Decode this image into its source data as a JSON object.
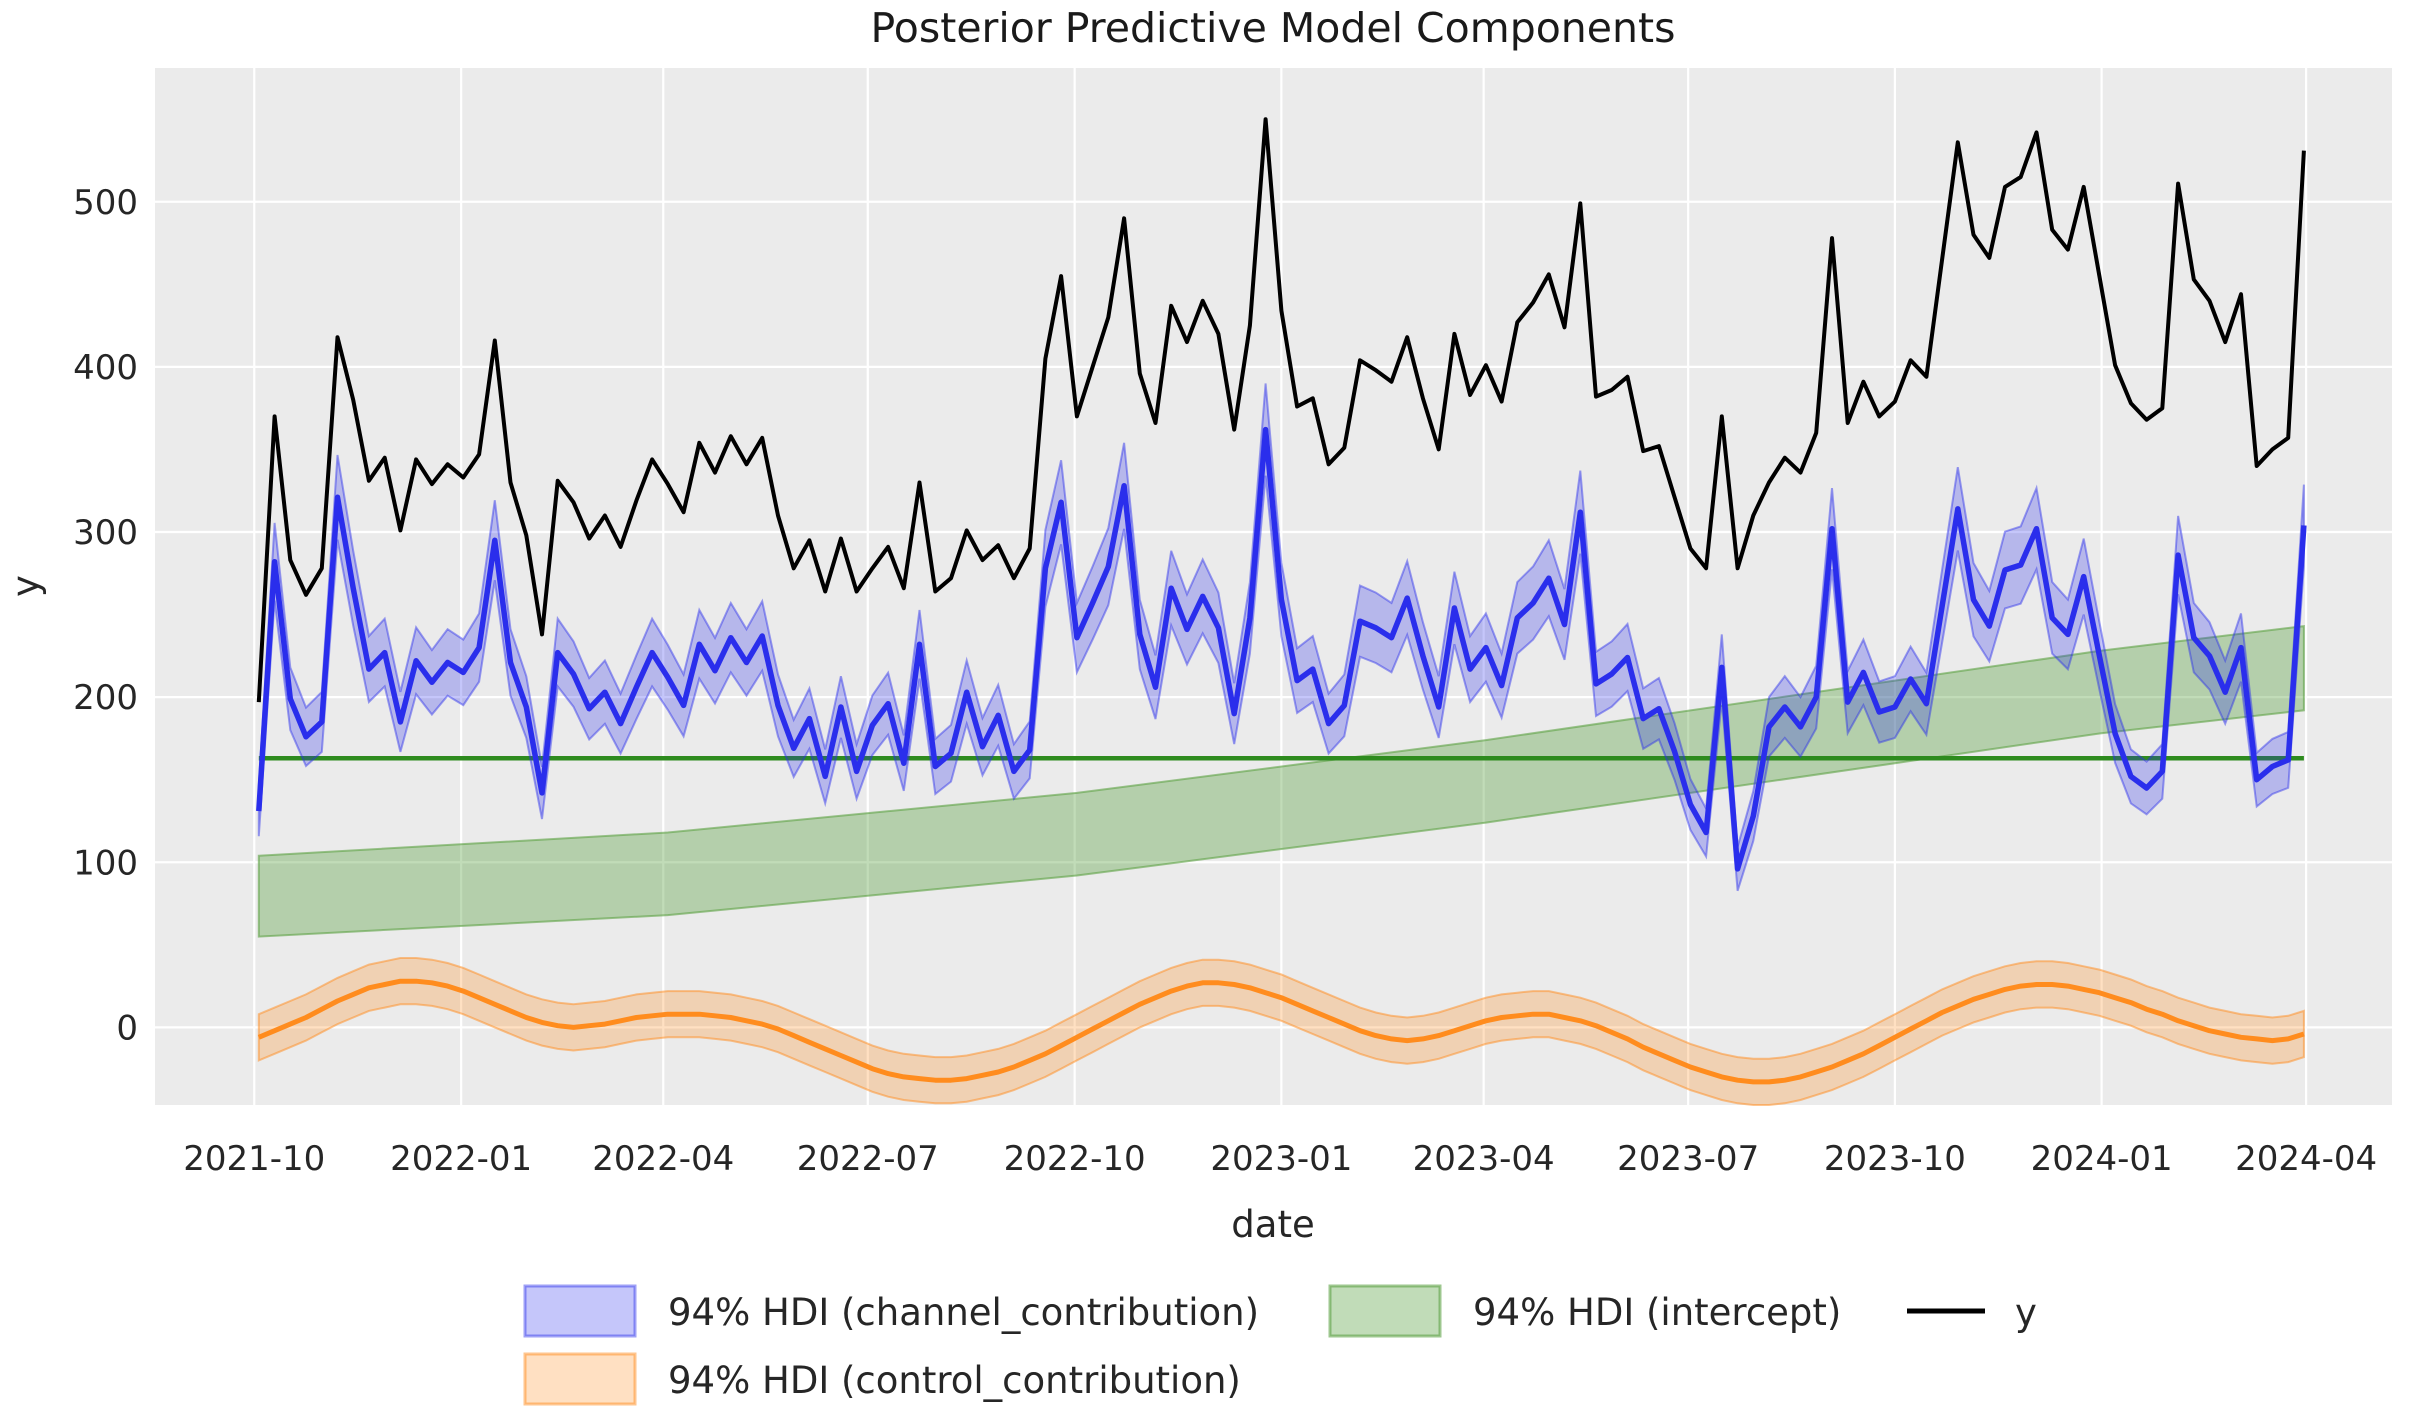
{
  "title": "Posterior Predictive Model Components",
  "xlabel": "date",
  "ylabel": "y",
  "legend": {
    "channel_label": "94% HDI (channel_contribution)",
    "intercept_label": "94% HDI (intercept)",
    "y_label": "y",
    "control_label": "94% HDI (control_contribution)"
  },
  "colors": {
    "plot_bg": "#ebebeb",
    "grid": "#ffffff",
    "y_line": "#000000",
    "channel_line": "#2a2eec",
    "channel_fill": "rgba(42,46,236,0.27)",
    "channel_edge": "rgba(42,46,236,0.45)",
    "intercept_fill": "rgba(93,162,68,0.38)",
    "intercept_edge": "rgba(93,162,68,0.60)",
    "intercept_line": "#2e8b1e",
    "control_line": "#ff8c1e",
    "control_fill": "rgba(255,140,30,0.27)",
    "control_edge": "rgba(255,140,30,0.50)",
    "text": "#262626"
  },
  "chart_data": {
    "type": "line",
    "title": "Posterior Predictive Model Components",
    "xlabel": "date",
    "ylabel": "y",
    "start_date": "2021-10-03",
    "freq_days": 7,
    "n_points": 131,
    "x_tick_labels": [
      "2021-10",
      "2022-01",
      "2022-04",
      "2022-07",
      "2022-10",
      "2023-01",
      "2023-04",
      "2023-07",
      "2023-10",
      "2024-01",
      "2024-04"
    ],
    "x_tick_weeks": [
      -0.29,
      12.86,
      25.71,
      38.71,
      51.86,
      65.0,
      77.86,
      90.86,
      104.0,
      117.14,
      130.14
    ],
    "y_ticks": [
      0,
      100,
      200,
      300,
      400,
      500
    ],
    "xlim_weeks": [
      -6.6,
      135.6
    ],
    "ylim": [
      -47,
      581
    ],
    "grid": true,
    "legend_position": "below",
    "series": [
      {
        "name": "y",
        "style": "line",
        "values": [
          197,
          370,
          283,
          262,
          278,
          418,
          380,
          331,
          345,
          301,
          344,
          329,
          341,
          333,
          347,
          416,
          330,
          298,
          238,
          331,
          318,
          296,
          310,
          291,
          319,
          344,
          329,
          312,
          354,
          336,
          358,
          341,
          357,
          310,
          278,
          295,
          264,
          296,
          264,
          278,
          291,
          266,
          330,
          264,
          272,
          301,
          283,
          292,
          272,
          290,
          405,
          455,
          370,
          400,
          430,
          490,
          396,
          366,
          437,
          415,
          440,
          420,
          362,
          425,
          550,
          434,
          376,
          381,
          341,
          351,
          404,
          398,
          391,
          418,
          381,
          350,
          420,
          383,
          401,
          379,
          427,
          439,
          456,
          424,
          499,
          382,
          386,
          394,
          349,
          352,
          321,
          290,
          278,
          370,
          278,
          310,
          330,
          345,
          336,
          360,
          478,
          366,
          391,
          370,
          379,
          404,
          394,
          465,
          536,
          480,
          466,
          509,
          515,
          542,
          483,
          471,
          509,
          455,
          401,
          378,
          368,
          375,
          511,
          453,
          440,
          415,
          444,
          340,
          350,
          357,
          531
        ]
      },
      {
        "name": "channel_contribution_mean",
        "style": "line_with_hdi",
        "values": [
          131,
          282,
          199,
          176,
          185,
          321,
          266,
          217,
          227,
          185,
          222,
          209,
          221,
          215,
          230,
          295,
          221,
          194,
          142,
          227,
          214,
          193,
          203,
          184,
          206,
          227,
          212,
          195,
          232,
          216,
          236,
          221,
          237,
          195,
          169,
          187,
          152,
          194,
          155,
          183,
          196,
          160,
          232,
          158,
          166,
          203,
          170,
          189,
          155,
          168,
          278,
          318,
          236,
          257,
          279,
          328,
          238,
          206,
          266,
          241,
          261,
          242,
          190,
          248,
          362,
          259,
          210,
          217,
          184,
          195,
          246,
          242,
          236,
          260,
          225,
          194,
          254,
          217,
          230,
          207,
          248,
          257,
          272,
          244,
          312,
          208,
          214,
          224,
          187,
          193,
          167,
          135,
          118,
          218,
          96,
          128,
          182,
          194,
          182,
          200,
          302,
          197,
          215,
          191,
          194,
          211,
          196,
          255,
          314,
          259,
          243,
          277,
          280,
          302,
          248,
          238,
          273,
          225,
          178,
          152,
          145,
          155,
          286,
          236,
          225,
          203,
          230,
          150,
          158,
          162,
          304
        ],
        "hdi_halfwidth_base": 8,
        "hdi_halfwidth_scale": 0.055
      },
      {
        "name": "control_contribution_mean",
        "style": "line_with_hdi",
        "values": [
          -6,
          -2,
          2,
          6,
          11,
          16,
          20,
          24,
          26,
          28,
          28,
          27,
          25,
          22,
          18,
          14,
          10,
          6,
          3,
          1,
          0,
          1,
          2,
          4,
          6,
          7,
          8,
          8,
          8,
          7,
          6,
          4,
          2,
          -1,
          -5,
          -9,
          -13,
          -17,
          -21,
          -25,
          -28,
          -30,
          -31,
          -32,
          -32,
          -31,
          -29,
          -27,
          -24,
          -20,
          -16,
          -11,
          -6,
          -1,
          4,
          9,
          14,
          18,
          22,
          25,
          27,
          27,
          26,
          24,
          21,
          18,
          14,
          10,
          6,
          2,
          -2,
          -5,
          -7,
          -8,
          -7,
          -5,
          -2,
          1,
          4,
          6,
          7,
          8,
          8,
          6,
          4,
          1,
          -3,
          -7,
          -12,
          -16,
          -20,
          -24,
          -27,
          -30,
          -32,
          -33,
          -33,
          -32,
          -30,
          -27,
          -24,
          -20,
          -16,
          -11,
          -6,
          -1,
          4,
          9,
          13,
          17,
          20,
          23,
          25,
          26,
          26,
          25,
          23,
          21,
          18,
          15,
          11,
          8,
          4,
          1,
          -2,
          -4,
          -6,
          -7,
          -8,
          -7,
          -4
        ],
        "hdi_halfwidth": 14
      },
      {
        "name": "intercept_hdi_band",
        "style": "band",
        "weeks": [
          0,
          26,
          52,
          78,
          104,
          117,
          130
        ],
        "lower": [
          55,
          68,
          92,
          124,
          160,
          178,
          192
        ],
        "upper": [
          104,
          118,
          142,
          174,
          210,
          228,
          243
        ]
      },
      {
        "name": "intercept_line",
        "style": "hline",
        "value": 163,
        "span_weeks": [
          0,
          130
        ]
      }
    ]
  }
}
